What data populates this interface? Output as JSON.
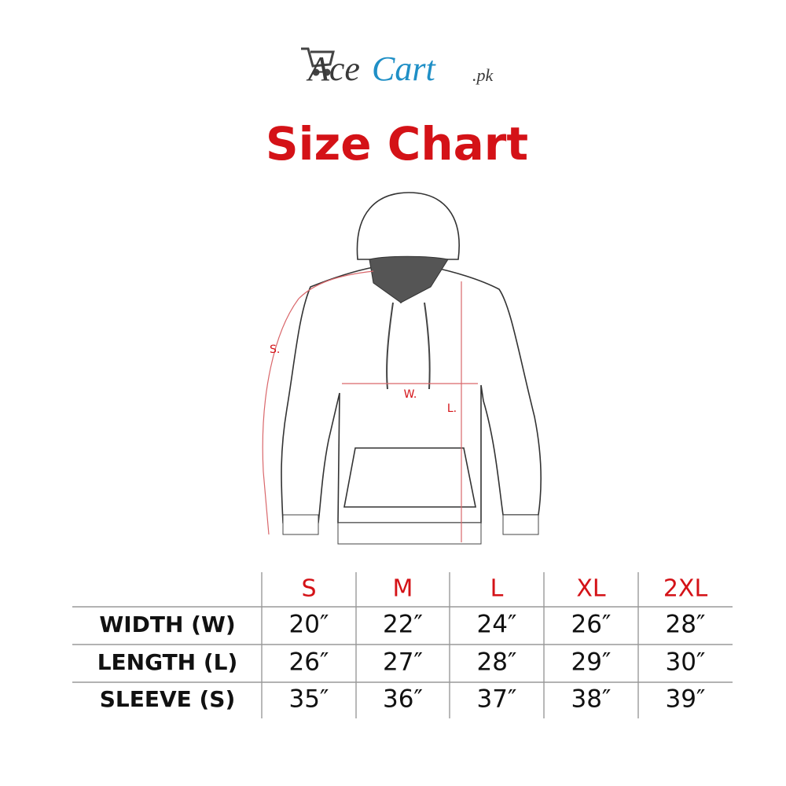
{
  "logo": {
    "ace": "Ace",
    "cart": "Cart",
    "suffix": ".pk"
  },
  "title": "Size Chart",
  "diagram": {
    "sleeve_label": "S.",
    "width_label": "W.",
    "length_label": "L."
  },
  "table": {
    "header": [
      "S",
      "M",
      "L",
      "XL",
      "2XL"
    ],
    "rows": [
      [
        "WIDTH (W)",
        "20″",
        "22″",
        "24″",
        "26″",
        "28″"
      ],
      [
        "LENGTH (L)",
        "26″",
        "27″",
        "28″",
        "29″",
        "30″"
      ],
      [
        "SLEEVE (S)",
        "35″",
        "36″",
        "37″",
        "38″",
        "39″"
      ]
    ]
  }
}
